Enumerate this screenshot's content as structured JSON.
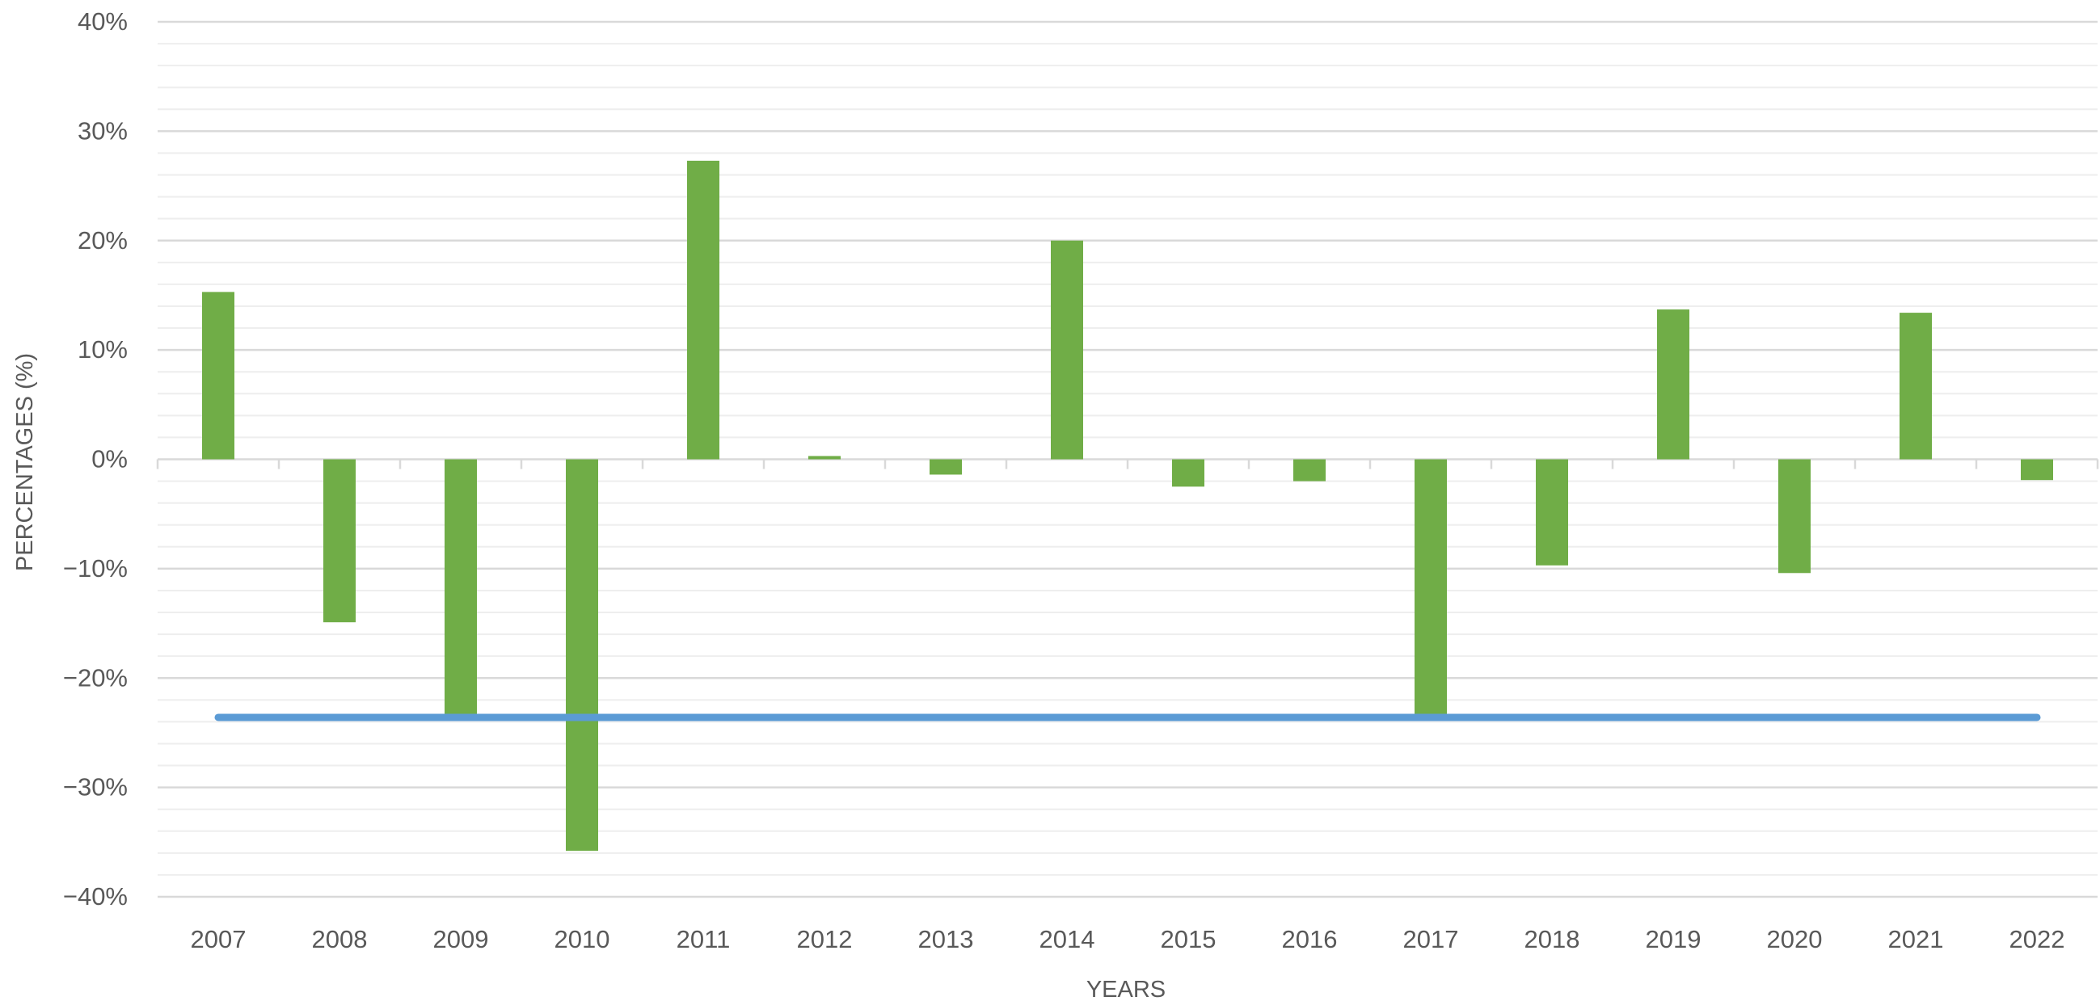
{
  "chart_data": {
    "type": "bar",
    "title": "",
    "xlabel": "YEARS",
    "ylabel": "PERCENTAGES (%)",
    "ylim": [
      -40,
      40
    ],
    "y_major_step": 10,
    "y_minor_step": 2,
    "y_tick_labels": [
      "40%",
      "30%",
      "20%",
      "10%",
      "0%",
      "−10%",
      "−20%",
      "−30%",
      "−40%"
    ],
    "y_tick_values": [
      40,
      30,
      20,
      10,
      0,
      -10,
      -20,
      -30,
      -40
    ],
    "grid": true,
    "legend": "none",
    "categories": [
      "2007",
      "2008",
      "2009",
      "2010",
      "2011",
      "2012",
      "2013",
      "2014",
      "2015",
      "2016",
      "2017",
      "2018",
      "2019",
      "2020",
      "2021",
      "2022"
    ],
    "series": [
      {
        "values": [
          15.3,
          -14.9,
          -23.6,
          -35.8,
          27.3,
          0.3,
          -1.4,
          20.0,
          -2.5,
          -2.0,
          -23.6,
          -9.7,
          13.7,
          -10.4,
          13.4,
          -1.9
        ]
      }
    ],
    "reference_line": {
      "value": -23.6,
      "from_category": "2007",
      "to_category": "2022"
    },
    "colors": {
      "bar": "#70AD47",
      "reference_line": "#5B9BD5",
      "grid_major": "#d9d9d9",
      "grid_minor": "#eeeeee",
      "axis_text": "#595959"
    }
  }
}
